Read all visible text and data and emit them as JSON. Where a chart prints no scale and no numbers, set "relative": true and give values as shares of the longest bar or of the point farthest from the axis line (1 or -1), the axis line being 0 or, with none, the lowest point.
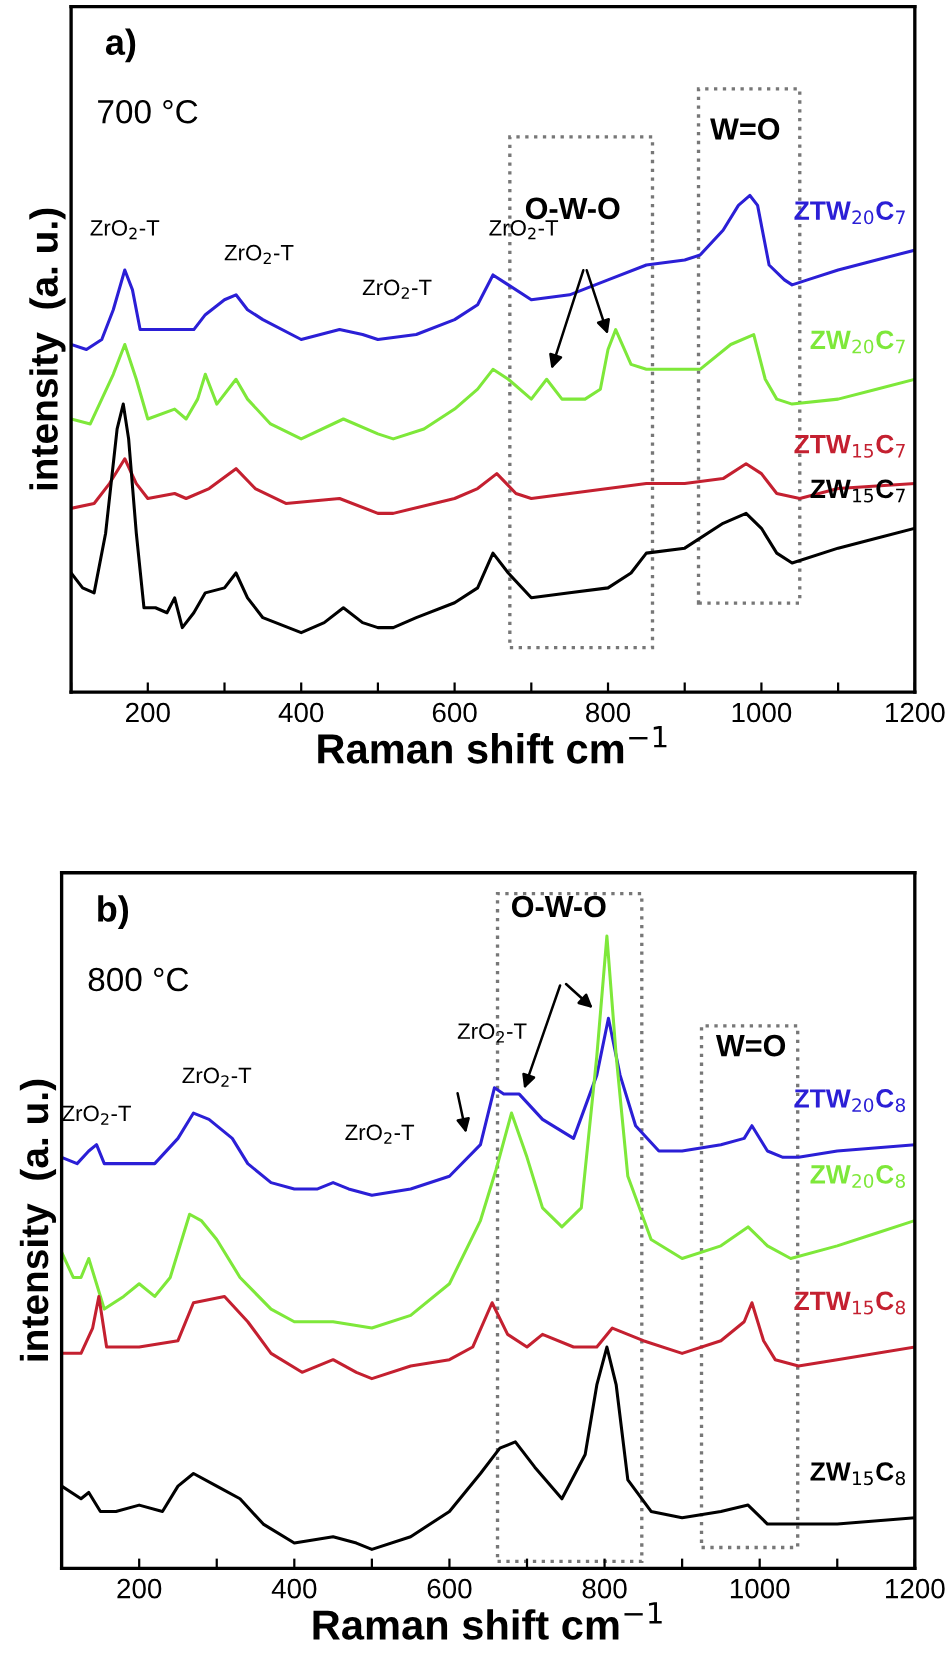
{
  "chart_data": [
    {
      "type": "line",
      "relative": true,
      "xlabel": "Raman shift cm$^{−1}$",
      "ylabel": "intensity  (a. u.)",
      "xlim": [
        100,
        1200
      ],
      "xticks": [
        {
          "value": 100,
          "label": null
        },
        200,
        {
          "value": 300,
          "label": null
        },
        400,
        {
          "value": 500,
          "label": null
        },
        600,
        {
          "value": 700,
          "label": null
        },
        800,
        {
          "value": 900,
          "label": null
        },
        1000,
        {
          "value": 1100,
          "label": null
        },
        1200
      ],
      "grid": false,
      "legend": false,
      "marker": "none",
      "line_style": "solid",
      "tick_labels": "x",
      "annotations": [
        "a)",
        "700 °C",
        "ZrO$_{2}$-T",
        "ZrO$_{2}$-T",
        "ZrO$_{2}$-T",
        "ZrO$_{2}$-T",
        "O-W-O",
        "W=O"
      ],
      "series": [
        {
          "name": "ZTW$_{20}$C$_{7}$",
          "color": "#2b1fd6",
          "x": [
            100,
            120,
            140,
            155,
            170,
            180,
            190,
            210,
            235,
            260,
            275,
            300,
            315,
            330,
            350,
            400,
            450,
            480,
            500,
            550,
            600,
            630,
            650,
            670,
            700,
            750,
            800,
            850,
            900,
            920,
            950,
            970,
            985,
            995,
            1010,
            1030,
            1040,
            1060,
            1100,
            1150,
            1200
          ],
          "values": [
            0.7,
            0.69,
            0.71,
            0.77,
            0.85,
            0.81,
            0.73,
            0.73,
            0.73,
            0.73,
            0.76,
            0.79,
            0.8,
            0.77,
            0.75,
            0.71,
            0.73,
            0.72,
            0.71,
            0.72,
            0.75,
            0.78,
            0.84,
            0.82,
            0.79,
            0.8,
            0.83,
            0.86,
            0.87,
            0.88,
            0.93,
            0.98,
            1.0,
            0.98,
            0.86,
            0.83,
            0.82,
            0.83,
            0.85,
            0.87,
            0.89
          ]
        },
        {
          "name": "ZW$_{20}$C$_{7}$",
          "color": "#7ee83a",
          "x": [
            100,
            125,
            140,
            155,
            170,
            185,
            200,
            235,
            250,
            265,
            275,
            290,
            315,
            330,
            360,
            400,
            455,
            500,
            520,
            560,
            600,
            630,
            650,
            670,
            700,
            720,
            740,
            770,
            790,
            800,
            810,
            830,
            850,
            900,
            920,
            960,
            990,
            1005,
            1020,
            1040,
            1100,
            1150,
            1200
          ],
          "values": [
            0.55,
            0.54,
            0.59,
            0.64,
            0.7,
            0.63,
            0.55,
            0.57,
            0.55,
            0.59,
            0.64,
            0.58,
            0.63,
            0.59,
            0.54,
            0.51,
            0.55,
            0.52,
            0.51,
            0.53,
            0.57,
            0.61,
            0.65,
            0.63,
            0.59,
            0.63,
            0.59,
            0.59,
            0.61,
            0.69,
            0.73,
            0.66,
            0.65,
            0.65,
            0.65,
            0.7,
            0.72,
            0.63,
            0.59,
            0.58,
            0.59,
            0.61,
            0.63
          ]
        },
        {
          "name": "ZTW$_{15}$C$_{7}$",
          "color": "#c42030",
          "x": [
            100,
            130,
            150,
            170,
            185,
            200,
            235,
            250,
            280,
            315,
            340,
            380,
            450,
            500,
            520,
            600,
            630,
            655,
            680,
            700,
            750,
            800,
            850,
            900,
            950,
            980,
            1000,
            1020,
            1050,
            1100,
            1200
          ],
          "values": [
            0.37,
            0.38,
            0.42,
            0.47,
            0.42,
            0.39,
            0.4,
            0.39,
            0.41,
            0.45,
            0.41,
            0.38,
            0.39,
            0.36,
            0.36,
            0.39,
            0.41,
            0.44,
            0.4,
            0.39,
            0.4,
            0.41,
            0.42,
            0.42,
            0.43,
            0.46,
            0.44,
            0.4,
            0.39,
            0.41,
            0.42
          ]
        },
        {
          "name": "ZW$_{15}$C$_{7}$",
          "color": "#000000",
          "x": [
            100,
            115,
            130,
            145,
            160,
            168,
            175,
            185,
            195,
            210,
            225,
            235,
            245,
            260,
            275,
            300,
            315,
            330,
            350,
            400,
            430,
            455,
            480,
            500,
            520,
            550,
            600,
            630,
            650,
            670,
            700,
            750,
            800,
            830,
            850,
            900,
            950,
            980,
            1000,
            1020,
            1040,
            1100,
            1150,
            1200
          ],
          "values": [
            0.24,
            0.21,
            0.2,
            0.32,
            0.53,
            0.58,
            0.51,
            0.32,
            0.17,
            0.17,
            0.16,
            0.19,
            0.13,
            0.16,
            0.2,
            0.21,
            0.24,
            0.19,
            0.15,
            0.12,
            0.14,
            0.17,
            0.14,
            0.13,
            0.13,
            0.15,
            0.18,
            0.21,
            0.28,
            0.24,
            0.19,
            0.2,
            0.21,
            0.24,
            0.28,
            0.29,
            0.34,
            0.36,
            0.33,
            0.28,
            0.26,
            0.29,
            0.31,
            0.33
          ]
        }
      ]
    },
    {
      "type": "line",
      "relative": true,
      "xlabel": "Raman shift cm$^{−1}$",
      "ylabel": "intensity  (a. u.)",
      "xlim": [
        100,
        1200
      ],
      "xticks": [
        {
          "value": 100,
          "label": null
        },
        200,
        {
          "value": 300,
          "label": null
        },
        400,
        {
          "value": 500,
          "label": null
        },
        600,
        {
          "value": 700,
          "label": null
        },
        800,
        {
          "value": 900,
          "label": null
        },
        1000,
        {
          "value": 1100,
          "label": null
        },
        1200
      ],
      "grid": false,
      "legend": false,
      "marker": "none",
      "line_style": "solid",
      "tick_labels": "x",
      "annotations": [
        "b)",
        "800 °C",
        "ZrO$_{2}$-T",
        "ZrO$_{2}$-T",
        "ZrO$_{2}$-T",
        "ZrO$_{2}$-T",
        "O-W-O",
        "W=O"
      ],
      "series": [
        {
          "name": "ZTW$_{20}$C$_{8}$",
          "color": "#2b1fd6",
          "x": [
            100,
            120,
            135,
            145,
            155,
            180,
            200,
            220,
            250,
            270,
            290,
            320,
            340,
            370,
            400,
            430,
            450,
            470,
            500,
            550,
            600,
            640,
            658,
            670,
            690,
            720,
            760,
            790,
            805,
            820,
            840,
            870,
            900,
            950,
            980,
            990,
            1010,
            1030,
            1050,
            1100,
            1200
          ],
          "values": [
            0.65,
            0.64,
            0.66,
            0.67,
            0.64,
            0.64,
            0.64,
            0.64,
            0.68,
            0.72,
            0.71,
            0.68,
            0.64,
            0.61,
            0.6,
            0.6,
            0.61,
            0.6,
            0.59,
            0.6,
            0.62,
            0.67,
            0.76,
            0.75,
            0.75,
            0.71,
            0.68,
            0.78,
            0.87,
            0.78,
            0.7,
            0.66,
            0.66,
            0.67,
            0.68,
            0.7,
            0.66,
            0.65,
            0.65,
            0.66,
            0.67
          ]
        },
        {
          "name": "ZW$_{20}$C$_{8}$",
          "color": "#7ee83a",
          "x": [
            100,
            115,
            125,
            135,
            145,
            155,
            180,
            200,
            220,
            240,
            265,
            280,
            300,
            330,
            370,
            400,
            450,
            500,
            550,
            600,
            640,
            660,
            680,
            700,
            720,
            745,
            770,
            790,
            803,
            815,
            830,
            860,
            900,
            950,
            985,
            1010,
            1040,
            1100,
            1150,
            1200
          ],
          "values": [
            0.5,
            0.46,
            0.46,
            0.49,
            0.45,
            0.41,
            0.43,
            0.45,
            0.43,
            0.46,
            0.56,
            0.55,
            0.52,
            0.46,
            0.41,
            0.39,
            0.39,
            0.38,
            0.4,
            0.45,
            0.55,
            0.63,
            0.72,
            0.65,
            0.57,
            0.54,
            0.57,
            0.81,
            1.0,
            0.81,
            0.62,
            0.52,
            0.49,
            0.51,
            0.54,
            0.51,
            0.49,
            0.51,
            0.53,
            0.55
          ]
        },
        {
          "name": "ZTW$_{15}$C$_{8}$",
          "color": "#c42030",
          "x": [
            100,
            125,
            140,
            148,
            158,
            200,
            250,
            270,
            310,
            340,
            370,
            410,
            450,
            480,
            500,
            550,
            600,
            630,
            655,
            675,
            700,
            720,
            760,
            790,
            810,
            850,
            900,
            950,
            980,
            990,
            1005,
            1020,
            1050,
            1100,
            1200
          ],
          "values": [
            0.34,
            0.34,
            0.38,
            0.43,
            0.35,
            0.35,
            0.36,
            0.42,
            0.43,
            0.39,
            0.34,
            0.31,
            0.33,
            0.31,
            0.3,
            0.32,
            0.33,
            0.35,
            0.42,
            0.37,
            0.35,
            0.37,
            0.35,
            0.35,
            0.38,
            0.36,
            0.34,
            0.36,
            0.39,
            0.42,
            0.36,
            0.33,
            0.32,
            0.33,
            0.35
          ]
        },
        {
          "name": "ZW$_{15}$C$_{8}$",
          "color": "#000000",
          "x": [
            100,
            125,
            135,
            150,
            170,
            200,
            230,
            250,
            270,
            300,
            330,
            360,
            400,
            450,
            480,
            500,
            550,
            600,
            640,
            665,
            685,
            710,
            745,
            775,
            790,
            803,
            815,
            830,
            860,
            900,
            950,
            985,
            1010,
            1050,
            1100,
            1200
          ],
          "values": [
            0.13,
            0.11,
            0.12,
            0.09,
            0.09,
            0.1,
            0.09,
            0.13,
            0.15,
            0.13,
            0.11,
            0.07,
            0.04,
            0.05,
            0.04,
            0.03,
            0.05,
            0.09,
            0.15,
            0.19,
            0.2,
            0.16,
            0.11,
            0.18,
            0.29,
            0.35,
            0.29,
            0.14,
            0.09,
            0.08,
            0.09,
            0.1,
            0.07,
            0.07,
            0.07,
            0.08
          ]
        }
      ]
    }
  ]
}
